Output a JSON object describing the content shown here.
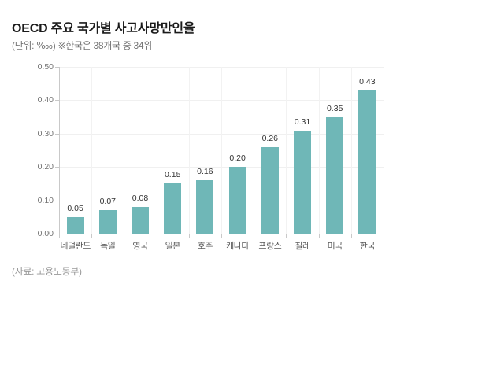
{
  "header": {
    "title": "OECD 주요 국가별 사고사망만인율",
    "subtitle": "(단위: ‱) ※한국은 38개국 중 34위"
  },
  "footer": {
    "source": "(자료: 고용노동부)"
  },
  "colors": {
    "bar": "#6fb7b7",
    "axis": "#c9c9c9",
    "grid": "#f0f0f0",
    "title_text": "#1a1a1a",
    "subtitle_text": "#757575",
    "value_text": "#333333",
    "category_text": "#595959",
    "tick_text": "#737373",
    "source_text": "#999999",
    "background": "#ffffff"
  },
  "chart_data": {
    "type": "bar",
    "title": "OECD 주요 국가별 사고사망만인율",
    "subtitle": "(단위: ‱) ※한국은 38개국 중 34위",
    "categories": [
      "네덜란드",
      "독일",
      "영국",
      "일본",
      "호주",
      "캐나다",
      "프랑스",
      "칠레",
      "미국",
      "한국"
    ],
    "values": [
      0.05,
      0.07,
      0.08,
      0.15,
      0.16,
      0.2,
      0.26,
      0.31,
      0.35,
      0.43
    ],
    "value_labels": [
      "0.05",
      "0.07",
      "0.08",
      "0.15",
      "0.16",
      "0.20",
      "0.26",
      "0.31",
      "0.35",
      "0.43"
    ],
    "xlabel": "",
    "ylabel": "",
    "ylim": [
      0.0,
      0.5
    ],
    "ytick_step": 0.1,
    "ytick_labels": [
      "0.00",
      "0.10",
      "0.20",
      "0.30",
      "0.40",
      "0.50"
    ],
    "grid": true,
    "legend": "none",
    "bar_color": "#6fb7b7",
    "source": "(자료: 고용노동부)"
  }
}
